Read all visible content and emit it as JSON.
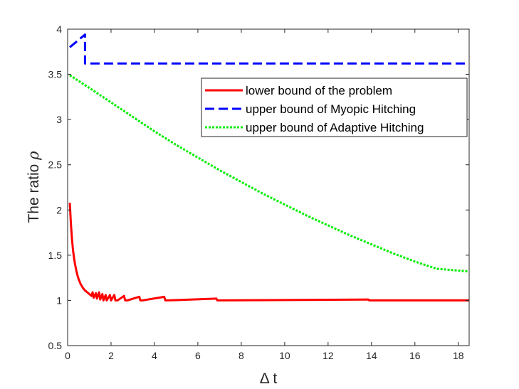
{
  "chart_data": {
    "type": "line",
    "title": "",
    "xlabel": "Δ t",
    "ylabel_text": "The ratio ",
    "ylabel_symbol": "ρ",
    "xlim": [
      0,
      18.5
    ],
    "ylim": [
      0.5,
      4
    ],
    "xticks": [
      0,
      2,
      4,
      6,
      8,
      10,
      12,
      14,
      16,
      18
    ],
    "yticks": [
      0.5,
      1,
      1.5,
      2,
      2.5,
      3,
      3.5,
      4
    ],
    "grid": false,
    "legend_position": "top-right",
    "series": [
      {
        "name": "lower bound of the problem",
        "color": "#ff0000",
        "style": "solid",
        "x": [
          0.1,
          0.15,
          0.2,
          0.25,
          0.3,
          0.35,
          0.4,
          0.45,
          0.5,
          0.6,
          0.7,
          0.8,
          0.9,
          1.0,
          1.1,
          1.15,
          1.2,
          1.3,
          1.35,
          1.45,
          1.5,
          1.6,
          1.65,
          1.75,
          1.8,
          1.95,
          2.0,
          2.15,
          2.2,
          2.3,
          2.6,
          2.65,
          2.75,
          3.3,
          3.35,
          3.45,
          4.45,
          4.5,
          4.6,
          6.85,
          6.9,
          7.0,
          13.85,
          13.9,
          14.0,
          18.5
        ],
        "y": [
          2.08,
          1.85,
          1.68,
          1.55,
          1.46,
          1.39,
          1.33,
          1.28,
          1.24,
          1.18,
          1.14,
          1.11,
          1.09,
          1.07,
          1.05,
          1.09,
          1.03,
          1.08,
          1.02,
          1.09,
          1.01,
          1.07,
          1.0,
          1.06,
          1.0,
          1.06,
          1.0,
          1.06,
          1.0,
          1.0,
          1.05,
          1.0,
          1.0,
          1.04,
          1.0,
          1.0,
          1.04,
          1.0,
          1.0,
          1.02,
          1.0,
          1.0,
          1.01,
          1.0,
          1.0,
          1.0
        ]
      },
      {
        "name": "upper bound of Myopic Hitching",
        "color": "#0000ff",
        "style": "dashed",
        "x": [
          0.1,
          0.4,
          0.5,
          0.6,
          0.65,
          0.7,
          0.75,
          0.8,
          0.8,
          18.5
        ],
        "y": [
          3.8,
          3.86,
          3.88,
          3.9,
          3.91,
          3.92,
          3.93,
          3.94,
          3.62,
          3.62
        ]
      },
      {
        "name": "upper bound of Adaptive Hitching",
        "color": "#00ee00",
        "style": "dotted",
        "x": [
          0.1,
          1,
          2,
          3,
          4,
          5,
          6,
          7,
          8,
          9,
          10,
          11,
          12,
          13,
          14,
          15,
          16,
          17,
          18.5
        ],
        "y": [
          3.49,
          3.35,
          3.19,
          3.03,
          2.87,
          2.72,
          2.58,
          2.44,
          2.31,
          2.18,
          2.06,
          1.94,
          1.83,
          1.72,
          1.62,
          1.52,
          1.43,
          1.35,
          1.32
        ]
      }
    ]
  }
}
